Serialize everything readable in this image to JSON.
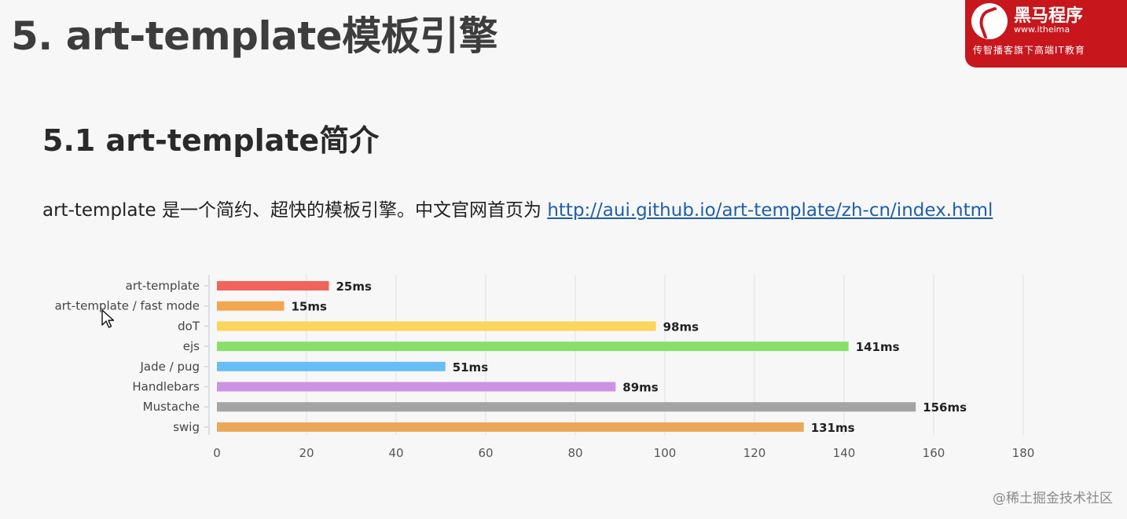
{
  "slide": {
    "title": "5. art-template模板引擎",
    "subtitle": "5.1 art-template简介",
    "intro_text": "art-template 是一个简约、超快的模板引擎。中文官网首页为 ",
    "intro_link": "http://aui.github.io/art-template/zh-cn/index.html"
  },
  "logo": {
    "name": "黑马程序",
    "url": "www.itheima",
    "slogan": "传智播客旗下高端IT教育"
  },
  "watermark": "@稀土掘金技术社区",
  "chart_data": {
    "type": "bar",
    "orientation": "horizontal",
    "categories": [
      "art-template",
      "art-template / fast mode",
      "doT",
      "ejs",
      "Jade / pug",
      "Handlebars",
      "Mustache",
      "swig"
    ],
    "values": [
      25,
      15,
      98,
      141,
      51,
      89,
      156,
      131
    ],
    "value_labels": [
      "25ms",
      "15ms",
      "98ms",
      "141ms",
      "51ms",
      "89ms",
      "156ms",
      "131ms"
    ],
    "colors": [
      "#f0645c",
      "#f3a650",
      "#fdd45c",
      "#87df6b",
      "#67bef5",
      "#cc92e3",
      "#a4a4a4",
      "#eaa858"
    ],
    "x_ticks": [
      "0",
      "20",
      "40",
      "60",
      "80",
      "100",
      "120",
      "140",
      "160",
      "180"
    ],
    "xlim": [
      0,
      180
    ],
    "grid": true
  }
}
